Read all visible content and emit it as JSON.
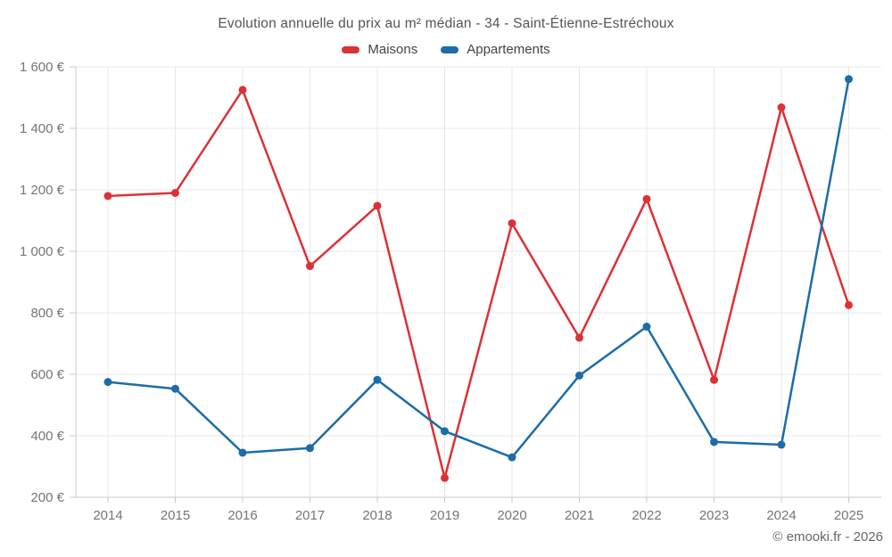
{
  "header": {
    "title": "Evolution annuelle du prix au m² médian - 34 - Saint-Étienne-Estréchoux"
  },
  "legend": {
    "items": [
      {
        "label": "Maisons",
        "color": "#db3236"
      },
      {
        "label": "Appartements",
        "color": "#1b6ca8"
      }
    ]
  },
  "footer": {
    "copyright": "© emooki.fr - 2026"
  },
  "chart_data": {
    "type": "line",
    "title": "Evolution annuelle du prix au m² médian - 34 - Saint-Étienne-Estréchoux",
    "categories": [
      "2014",
      "2015",
      "2016",
      "2017",
      "2018",
      "2019",
      "2020",
      "2021",
      "2022",
      "2023",
      "2024",
      "2025"
    ],
    "series": [
      {
        "name": "Maisons",
        "color": "#db3236",
        "values": [
          1180,
          1190,
          1525,
          952,
          1148,
          263,
          1091,
          719,
          1170,
          582,
          1468,
          825
        ]
      },
      {
        "name": "Appartements",
        "color": "#1b6ca8",
        "values": [
          575,
          553,
          345,
          360,
          582,
          415,
          330,
          596,
          755,
          380,
          371,
          1560
        ]
      }
    ],
    "xlabel": "",
    "ylabel": "",
    "ylim": [
      200,
      1600
    ],
    "ytick_step": 200,
    "ytick_labels": [
      "200 €",
      "400 €",
      "600 €",
      "800 €",
      "1 000 €",
      "1 200 €",
      "1 400 €",
      "1 600 €"
    ],
    "grid": true,
    "legend_position": "top",
    "colors": {
      "grid": "#e8e8e8",
      "axis": "#c9c9c9",
      "tick_text": "#757575",
      "title_text": "#555555",
      "legend_text": "#444444"
    }
  }
}
